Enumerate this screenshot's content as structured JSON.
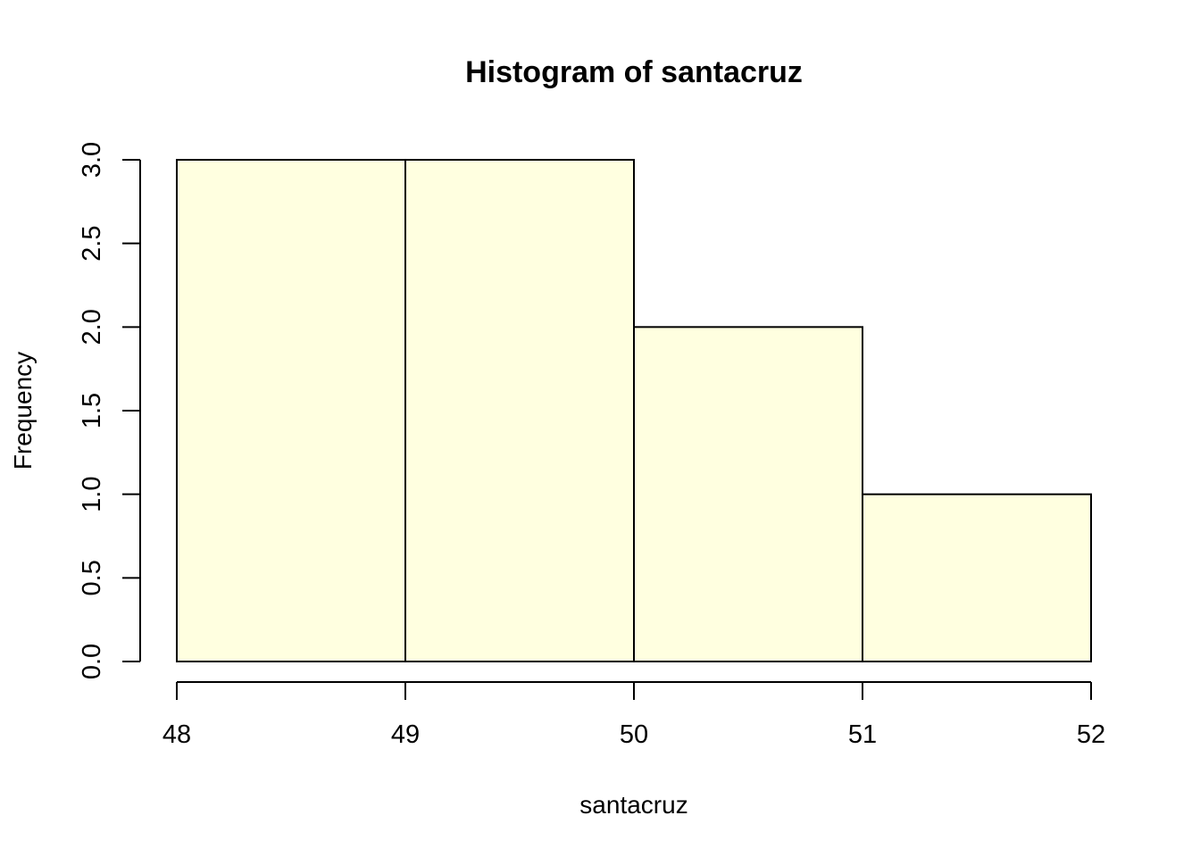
{
  "chart_data": {
    "type": "bar",
    "title": "Histogram of santacruz",
    "xlabel": "santacruz",
    "ylabel": "Frequency",
    "bins": [
      {
        "from": 48,
        "to": 49,
        "value": 3
      },
      {
        "from": 49,
        "to": 50,
        "value": 3
      },
      {
        "from": 50,
        "to": 51,
        "value": 2
      },
      {
        "from": 51,
        "to": 52,
        "value": 1
      }
    ],
    "xlim": [
      48,
      52
    ],
    "ylim": [
      0,
      3
    ],
    "x_ticks": [
      "48",
      "49",
      "50",
      "51",
      "52"
    ],
    "y_ticks": [
      "0.0",
      "0.5",
      "1.0",
      "1.5",
      "2.0",
      "2.5",
      "3.0"
    ],
    "bar_color": "#FFFFE0",
    "border_color": "#000000",
    "grid": false
  }
}
